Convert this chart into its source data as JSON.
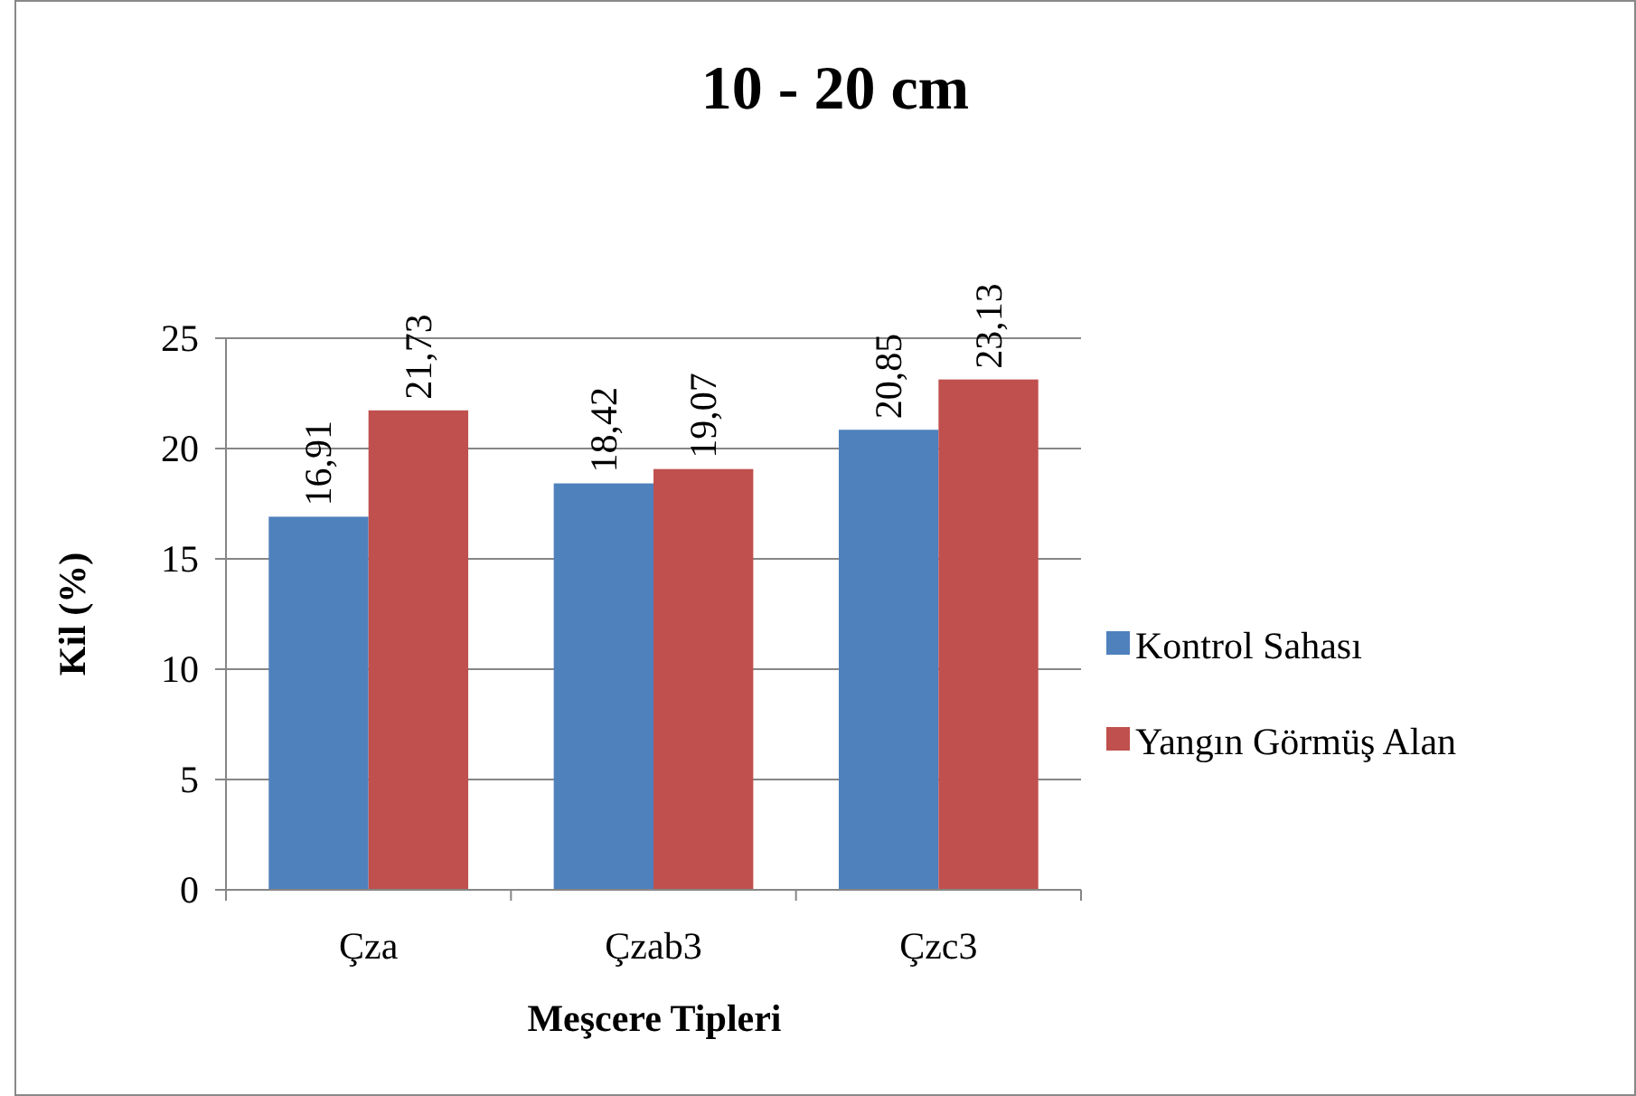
{
  "chart_data": {
    "type": "bar",
    "title": "10 - 20 cm",
    "xlabel": "Meşcere Tipleri",
    "ylabel": "Kil (%)",
    "categories": [
      "Çza",
      "Çzab3",
      "Çzc3"
    ],
    "series": [
      {
        "name": "Kontrol Sahası",
        "color": "#4f81bd",
        "values": [
          16.91,
          18.42,
          20.85
        ],
        "value_labels": [
          "16,91",
          "18,42",
          "20,85"
        ]
      },
      {
        "name": "Yangın Görmüş Alan",
        "color": "#c0504d",
        "values": [
          21.73,
          19.07,
          23.13
        ],
        "value_labels": [
          "21,73",
          "19,07",
          "23,13"
        ]
      }
    ],
    "ylim": [
      0,
      25
    ],
    "yticks": [
      0,
      5,
      10,
      15,
      20,
      25
    ],
    "grid": "y",
    "legend": "right"
  }
}
